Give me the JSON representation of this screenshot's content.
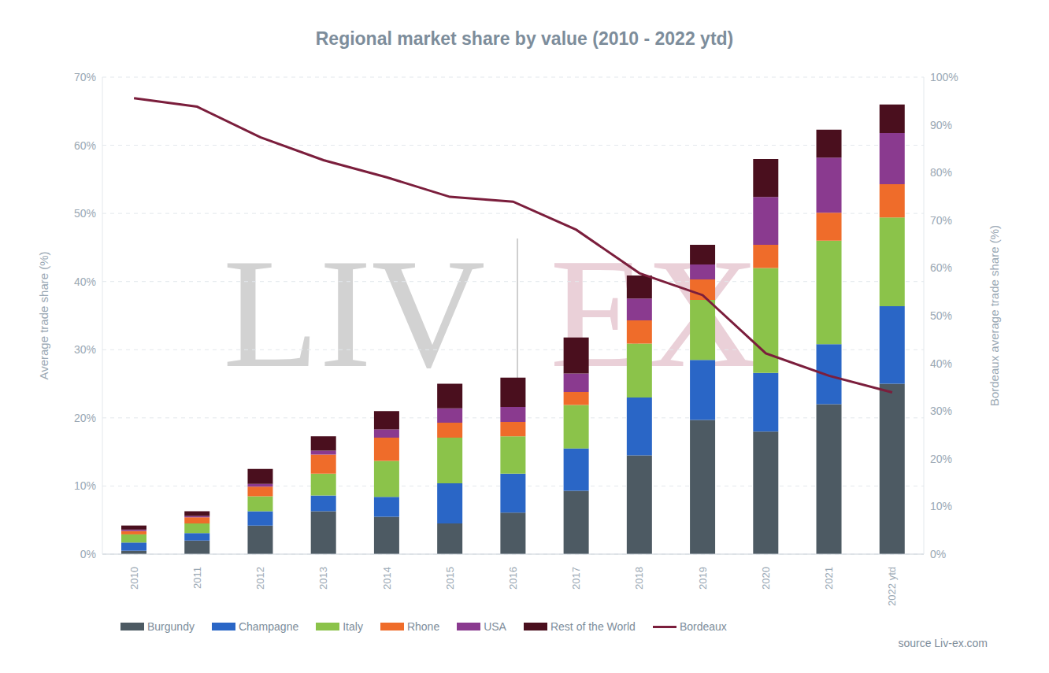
{
  "chart_data": {
    "type": "bar",
    "title": "Regional market share by value (2010 - 2022 ytd)",
    "watermark": [
      "LIV",
      "EX"
    ],
    "source": "source Liv-ex.com",
    "y_label": "Average trade share (%)",
    "y2_label": "Bordeaux average trade share (%)",
    "stacked": true,
    "grid": true,
    "legend": "bottom",
    "categories": [
      "2010",
      "2011",
      "2012",
      "2013",
      "2014",
      "2015",
      "2016",
      "2017",
      "2018",
      "2019",
      "2020",
      "2021",
      "2022 ytd"
    ],
    "ylim": [
      0,
      70
    ],
    "yticks": [
      {
        "value": 0,
        "label": "0%"
      },
      {
        "value": 10,
        "label": "10%"
      },
      {
        "value": 20,
        "label": "20%"
      },
      {
        "value": 30,
        "label": "30%"
      },
      {
        "value": 40,
        "label": "40%"
      },
      {
        "value": 50,
        "label": "50%"
      },
      {
        "value": 60,
        "label": "60%"
      },
      {
        "value": 70,
        "label": "70%"
      }
    ],
    "y2lim": [
      0,
      100
    ],
    "y2ticks": [
      {
        "value": 0,
        "label": "0%"
      },
      {
        "value": 10,
        "label": "10%"
      },
      {
        "value": 20,
        "label": "20%"
      },
      {
        "value": 30,
        "label": "30%"
      },
      {
        "value": 40,
        "label": "40%"
      },
      {
        "value": 50,
        "label": "50%"
      },
      {
        "value": 60,
        "label": "60%"
      },
      {
        "value": 70,
        "label": "70%"
      },
      {
        "value": 80,
        "label": "80%"
      },
      {
        "value": 90,
        "label": "90%"
      },
      {
        "value": 100,
        "label": "100%"
      }
    ],
    "series": [
      {
        "name": "Burgundy",
        "type": "bar",
        "color": "#4d5a63",
        "values": [
          0.5,
          2.0,
          4.2,
          6.3,
          5.5,
          4.5,
          6.1,
          9.3,
          14.5,
          19.7,
          18.0,
          22.0,
          25.0
        ]
      },
      {
        "name": "Champagne",
        "type": "bar",
        "color": "#2a66c6",
        "values": [
          1.2,
          1.1,
          2.1,
          2.3,
          2.9,
          5.9,
          5.7,
          6.2,
          8.5,
          8.8,
          8.6,
          8.8,
          11.4
        ]
      },
      {
        "name": "Italy",
        "type": "bar",
        "color": "#8bc34a",
        "values": [
          1.2,
          1.4,
          2.2,
          3.2,
          5.3,
          6.7,
          5.5,
          6.4,
          7.9,
          8.8,
          15.4,
          15.2,
          13.0
        ]
      },
      {
        "name": "Rhone",
        "type": "bar",
        "color": "#ef6c2a",
        "values": [
          0.5,
          0.9,
          1.4,
          2.8,
          3.4,
          2.2,
          2.1,
          1.9,
          3.4,
          3.0,
          3.4,
          4.1,
          4.9
        ]
      },
      {
        "name": "USA",
        "type": "bar",
        "color": "#8a3a8f",
        "values": [
          0.2,
          0.2,
          0.4,
          0.6,
          1.2,
          2.1,
          2.2,
          2.7,
          3.2,
          2.2,
          7.0,
          8.1,
          7.5
        ]
      },
      {
        "name": "Rest of the World",
        "type": "bar",
        "color": "#4a0f1e",
        "values": [
          0.6,
          0.7,
          2.2,
          2.1,
          2.7,
          3.6,
          4.3,
          5.3,
          3.4,
          2.9,
          5.6,
          4.1,
          4.2
        ]
      },
      {
        "name": "Bordeaux",
        "type": "line",
        "axis": "y2",
        "color": "#7b1e3c",
        "values": [
          95.6,
          93.8,
          87.4,
          82.6,
          79.0,
          74.9,
          73.9,
          68.0,
          58.9,
          54.3,
          42.1,
          37.4,
          33.9
        ]
      }
    ]
  }
}
